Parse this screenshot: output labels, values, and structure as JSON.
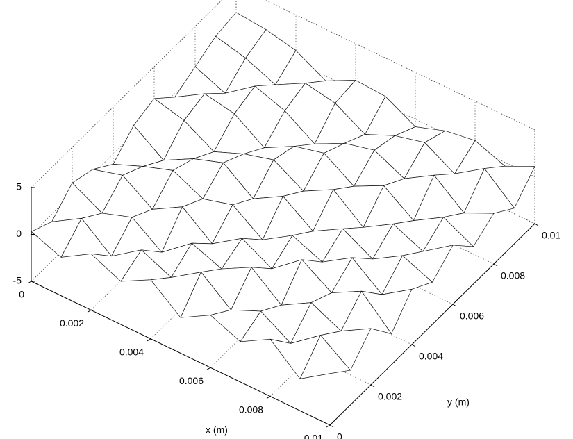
{
  "chart_data": {
    "type": "surface",
    "x_label": "x (m)",
    "y_label": "y (m)",
    "x": [
      0,
      0.001,
      0.002,
      0.003,
      0.004,
      0.005,
      0.006,
      0.007,
      0.008,
      0.009,
      0.01
    ],
    "y": [
      0,
      0.001,
      0.002,
      0.003,
      0.004,
      0.005,
      0.006,
      0.007,
      0.008,
      0.009,
      0.01
    ],
    "z": [
      [
        0.3,
        -0.8,
        1.2,
        0.5,
        -1.1,
        0.9,
        1.6,
        -0.4,
        0.7,
        1.8,
        2.2
      ],
      [
        -0.9,
        1.1,
        -0.5,
        1.4,
        0.2,
        -1.3,
        0.8,
        1.5,
        -0.6,
        1.0,
        1.9
      ],
      [
        1.0,
        -1.4,
        0.6,
        -0.7,
        1.3,
        0.4,
        -1.0,
        0.9,
        1.7,
        -0.3,
        1.2
      ],
      [
        -0.4,
        0.8,
        -1.6,
        1.1,
        -0.2,
        1.5,
        0.3,
        -1.2,
        0.6,
        1.4,
        -0.5
      ],
      [
        1.3,
        -0.6,
        0.9,
        -1.3,
        0.7,
        -0.8,
        1.2,
        0.5,
        -1.4,
        0.8,
        1.1
      ],
      [
        -1.2,
        1.5,
        -0.3,
        0.8,
        -1.5,
        1.0,
        -0.6,
        1.3,
        0.2,
        -1.0,
        0.9
      ],
      [
        0.6,
        -1.0,
        1.4,
        -0.9,
        0.5,
        -1.2,
        1.1,
        -0.7,
        1.0,
        0.4,
        -0.8
      ],
      [
        -0.7,
        0.4,
        -1.1,
        1.6,
        -0.8,
        0.6,
        -1.4,
        0.9,
        -0.5,
        1.2,
        0.3
      ],
      [
        1.1,
        -1.5,
        0.7,
        -0.4,
        1.2,
        -1.1,
        0.5,
        -1.3,
        1.4,
        -0.6,
        0.8
      ],
      [
        -1.6,
        0.9,
        -0.8,
        1.3,
        -1.2,
        0.8,
        -0.9,
        0.6,
        -1.1,
        1.5,
        -0.4
      ],
      [
        0.5,
        -1.3,
        1.0,
        -1.7,
        0.9,
        -0.5,
        1.3,
        -1.0,
        0.4,
        -1.2,
        1.1
      ]
    ],
    "xlim": [
      0,
      0.01
    ],
    "xticks": [
      0,
      0.002,
      0.004,
      0.006,
      0.008,
      0.01
    ],
    "ylim": [
      0,
      0.01
    ],
    "yticks": [
      0,
      0.002,
      0.004,
      0.006,
      0.008,
      0.01
    ],
    "zlim": [
      -5,
      5
    ],
    "zticks": [
      -5,
      0,
      5
    ],
    "grid": true
  }
}
